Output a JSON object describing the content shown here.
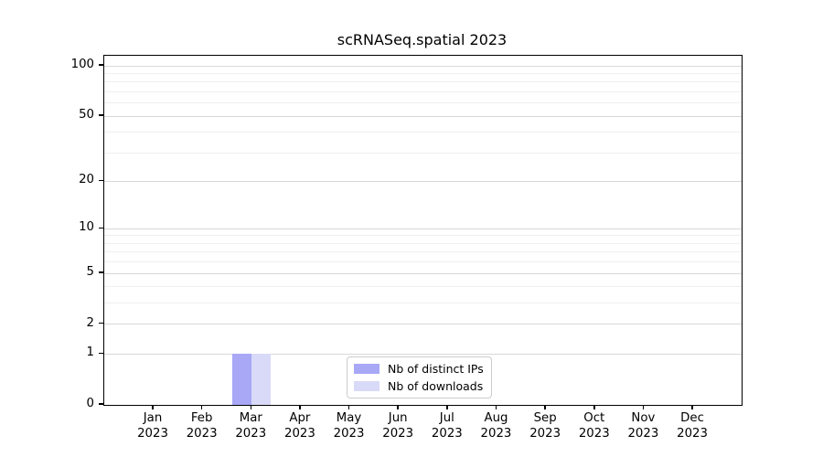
{
  "title": "scRNASeq.spatial 2023",
  "chart_data": {
    "type": "bar",
    "title": "scRNASeq.spatial 2023",
    "xlabel": "",
    "ylabel": "",
    "categories": [
      "Jan\n2023",
      "Feb\n2023",
      "Mar\n2023",
      "Apr\n2023",
      "May\n2023",
      "Jun\n2023",
      "Jul\n2023",
      "Aug\n2023",
      "Sep\n2023",
      "Oct\n2023",
      "Nov\n2023",
      "Dec\n2023"
    ],
    "series": [
      {
        "name": "Nb of distinct IPs",
        "color": "#a8a8f7",
        "values": [
          0,
          0,
          1,
          0,
          0,
          0,
          0,
          0,
          0,
          0,
          0,
          0
        ]
      },
      {
        "name": "Nb of downloads",
        "color": "#d9d9f8",
        "values": [
          0,
          0,
          1,
          0,
          0,
          0,
          0,
          0,
          0,
          0,
          0,
          0
        ]
      }
    ],
    "yscale": "log1p",
    "ylim": [
      0,
      115
    ],
    "y_major_ticks": [
      0,
      1,
      2,
      5,
      10,
      20,
      50,
      100
    ],
    "y_minor_gridlines": [
      3,
      4,
      6,
      7,
      8,
      9,
      30,
      40,
      60,
      70,
      80,
      90
    ],
    "grid": "horizontal, major and minor",
    "legend_position": "lower center inside plot",
    "colors": {
      "axis": "#000000",
      "grid_major": "#d8d8d8",
      "grid_minor": "#efefef",
      "background": "#ffffff"
    }
  }
}
